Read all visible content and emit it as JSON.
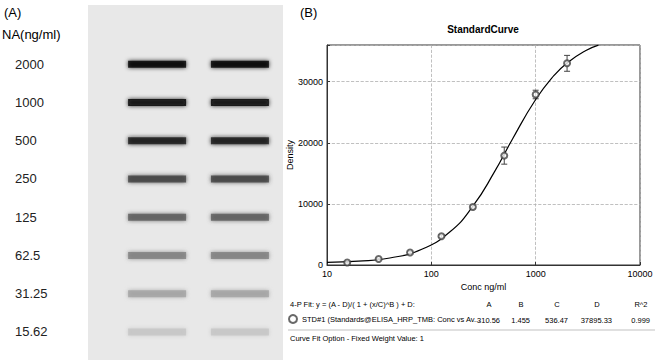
{
  "chart_data": [
    {
      "type": "blot",
      "label": "(A)",
      "ylabel": "NA(ng/ml)",
      "categories": [
        "2000",
        "1000",
        "500",
        "250",
        "125",
        "62.5",
        "31.25",
        "15.62"
      ],
      "series": [
        {
          "color": "#000000",
          "values": [
            1.0,
            0.97,
            0.9,
            0.72,
            0.6,
            0.45,
            0.3,
            0.15
          ]
        },
        {
          "color": "#000000",
          "values": [
            1.0,
            0.97,
            0.9,
            0.72,
            0.6,
            0.45,
            0.3,
            0.15
          ]
        }
      ]
    },
    {
      "type": "scatter",
      "label": "(B)",
      "title": "StandardCurve",
      "xlabel": "Conc ng/ml",
      "ylabel": "Density",
      "log": "x",
      "grid": true,
      "legend": "bottom",
      "xlim": [
        10,
        10000
      ],
      "xticks": [
        10,
        100,
        1000,
        10000
      ],
      "ylim": [
        0,
        36000
      ],
      "yticks": [
        0,
        10000,
        20000,
        30000
      ],
      "series": [
        {
          "name": "STD#1 (Standards@ELISA_HRP_TMB: Conc vs Av...",
          "type": "scatter",
          "marker": "open_circle",
          "color": "#444444",
          "x": [
            15.62,
            31.25,
            62.5,
            125,
            250,
            500,
            1000,
            2000
          ],
          "values": [
            420,
            980,
            2050,
            4700,
            9500,
            17900,
            27900,
            33000
          ],
          "errors": [
            100,
            100,
            150,
            200,
            300,
            1400,
            700,
            1300
          ]
        },
        {
          "type": "line",
          "line_style": "solid",
          "color": "#000000",
          "x": [
            10,
            20,
            40,
            80,
            150,
            250,
            400,
            600,
            1000,
            1500,
            2000,
            3000,
            4000
          ],
          "values": [
            424,
            621,
            1150,
            2527,
            5399,
            9619,
            15150,
            20628,
            27079,
            31017,
            33064,
            35054,
            35977
          ]
        }
      ],
      "fit": {
        "label": "4-P Fit: y = (A - D)/( 1 + (x/C)^B ) + D:",
        "columns": [
          "A",
          "B",
          "C",
          "D",
          "R^2"
        ],
        "values": [
          310.56,
          1.455,
          536.47,
          37895.33,
          0.999
        ]
      },
      "footer": "Curve Fit Option - Fixed Weight Value: 1"
    }
  ]
}
